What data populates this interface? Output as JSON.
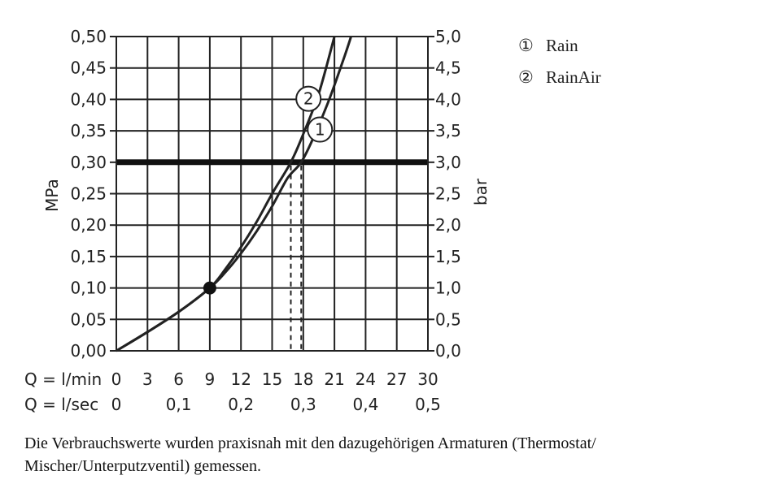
{
  "chart_data": {
    "type": "line",
    "y_left": {
      "label": "MPa",
      "range": [
        0,
        0.5
      ],
      "ticks": [
        "0,00",
        "0,05",
        "0,10",
        "0,15",
        "0,20",
        "0,25",
        "0,30",
        "0,35",
        "0,40",
        "0,45",
        "0,50"
      ]
    },
    "y_right": {
      "label": "bar",
      "range": [
        0,
        5
      ],
      "ticks": [
        "0,0",
        "0,5",
        "1,0",
        "1,5",
        "2,0",
        "2,5",
        "3,0",
        "3,5",
        "4,0",
        "4,5",
        "5,0"
      ]
    },
    "x_primary": {
      "label": "Q = l/min",
      "range": [
        0,
        30
      ],
      "ticks": [
        "0",
        "3",
        "6",
        "9",
        "12",
        "15",
        "18",
        "21",
        "24",
        "27",
        "30"
      ]
    },
    "x_secondary": {
      "label": "Q = l/sec",
      "ticks": [
        "0",
        "0,1",
        "0,2",
        "0,3",
        "0,4",
        "0,5"
      ],
      "tick_values_lmin": [
        0,
        6,
        12,
        18,
        24,
        30
      ]
    },
    "grid": true,
    "reference_line": {
      "y": 0.3
    },
    "common_point": {
      "x": 9,
      "y": 0.1
    },
    "series": [
      {
        "name": "Rain",
        "marker": "1",
        "x": [
          0,
          3,
          6,
          9,
          10.5,
          12,
          13.5,
          15,
          16.5,
          17.8,
          19,
          20.5,
          22,
          22.6
        ],
        "y": [
          0,
          0.03,
          0.062,
          0.1,
          0.125,
          0.155,
          0.19,
          0.23,
          0.275,
          0.3,
          0.34,
          0.4,
          0.47,
          0.5
        ],
        "marker_at": {
          "x": 19.6,
          "y": 0.352
        }
      },
      {
        "name": "RainAir",
        "marker": "2",
        "x": [
          0,
          3,
          6,
          9,
          10.5,
          12,
          13.5,
          15,
          16.8,
          18,
          19.5,
          21
        ],
        "y": [
          0,
          0.03,
          0.062,
          0.1,
          0.13,
          0.165,
          0.205,
          0.25,
          0.3,
          0.345,
          0.41,
          0.5
        ],
        "marker_at": {
          "x": 18.5,
          "y": 0.401
        }
      }
    ],
    "legend": {
      "placement": "top-right",
      "entries": [
        {
          "symbol": "①",
          "label": "Rain"
        },
        {
          "symbol": "②",
          "label": "RainAir"
        }
      ]
    }
  },
  "caption": {
    "line1": "Die Verbrauchswerte wurden praxisnah mit den dazugehörigen Armaturen (Thermostat/",
    "line2": "Mischer/Unterputzventil) gemessen."
  }
}
